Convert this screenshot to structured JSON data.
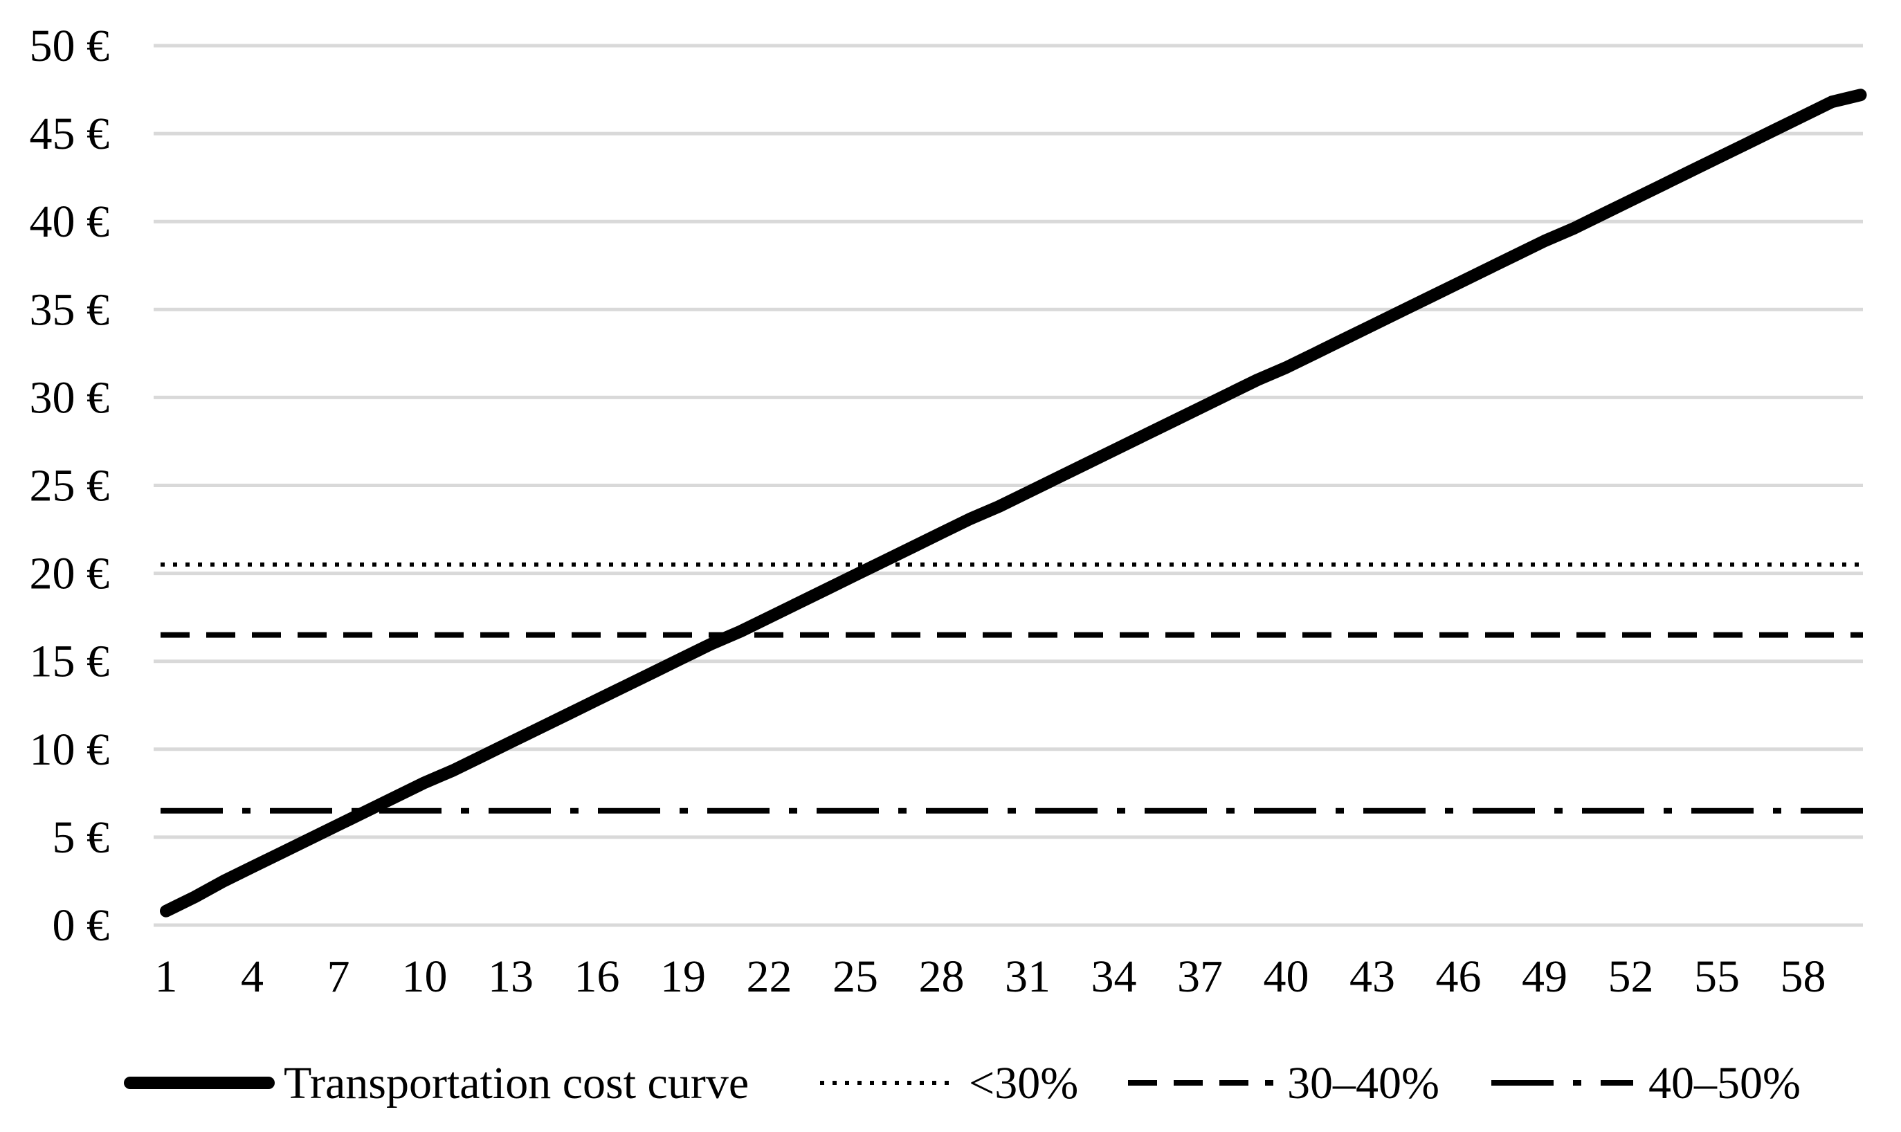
{
  "chart_data": {
    "type": "line",
    "title": "",
    "xlabel": "",
    "ylabel": "",
    "x": [
      1,
      2,
      3,
      4,
      5,
      6,
      7,
      8,
      9,
      10,
      11,
      12,
      13,
      14,
      15,
      16,
      17,
      18,
      19,
      20,
      21,
      22,
      23,
      24,
      25,
      26,
      27,
      28,
      29,
      30,
      31,
      32,
      33,
      34,
      35,
      36,
      37,
      38,
      39,
      40,
      41,
      42,
      43,
      44,
      45,
      46,
      47,
      48,
      49,
      50,
      51,
      52,
      53,
      54,
      55,
      56,
      57,
      58,
      59,
      60
    ],
    "x_tick_labels": [
      "1",
      "4",
      "7",
      "10",
      "13",
      "16",
      "19",
      "22",
      "25",
      "28",
      "31",
      "34",
      "37",
      "40",
      "43",
      "46",
      "49",
      "52",
      "55",
      "58"
    ],
    "y_tick_labels": [
      "0 €",
      "5 €",
      "10 €",
      "15 €",
      "20 €",
      "25 €",
      "30 €",
      "35 €",
      "40 €",
      "45 €",
      "50 €"
    ],
    "y_ticks": [
      0,
      5,
      10,
      15,
      20,
      25,
      30,
      35,
      40,
      45,
      50
    ],
    "ylim": [
      0,
      50
    ],
    "grid": "horizontal",
    "legend_position": "bottom",
    "series": [
      {
        "name": "Transportation cost curve",
        "style": "solid-thick",
        "color": "#000000",
        "values": [
          0.8,
          1.6,
          2.5,
          3.3,
          4.1,
          4.9,
          5.7,
          6.5,
          7.3,
          8.1,
          8.8,
          9.6,
          10.4,
          11.2,
          12.0,
          12.8,
          13.6,
          14.4,
          15.2,
          16.0,
          16.7,
          17.5,
          18.3,
          19.1,
          19.9,
          20.7,
          21.5,
          22.3,
          23.1,
          23.8,
          24.6,
          25.4,
          26.2,
          27.0,
          27.8,
          28.6,
          29.4,
          30.2,
          31.0,
          31.7,
          32.5,
          33.3,
          34.1,
          34.9,
          35.7,
          36.5,
          37.3,
          38.1,
          38.9,
          39.6,
          40.4,
          41.2,
          42.0,
          42.8,
          43.6,
          44.4,
          45.2,
          46.0,
          46.8,
          47.2
        ]
      },
      {
        "name": "<30%",
        "style": "dotted",
        "color": "#000000",
        "constant": 20.5
      },
      {
        "name": "30–40%",
        "style": "dashed",
        "color": "#000000",
        "constant": 16.5
      },
      {
        "name": "40–50%",
        "style": "dash-dot",
        "color": "#000000",
        "constant": 6.5
      }
    ]
  }
}
